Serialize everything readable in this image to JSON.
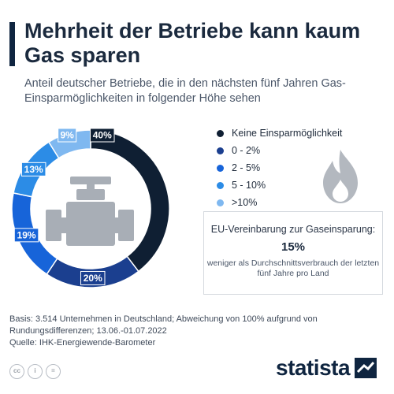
{
  "title": "Mehrheit der Betriebe kann kaum Gas sparen",
  "subtitle": "Anteil deutscher Betriebe, die in den nächsten fünf Jahren Gas-Einsparmöglichkeiten in folgender Höhe sehen",
  "chart_data": {
    "type": "pie",
    "variant": "donut",
    "title": "Mehrheit der Betriebe kann kaum Gas sparen",
    "subtitle": "Anteil deutscher Betriebe, die in den nächsten fünf Jahren Gas-Einsparmöglichkeiten in folgender Höhe sehen",
    "unit": "%",
    "legend_position": "right",
    "slices": [
      {
        "name": "Keine Einsparmöglichkeit",
        "value": 40,
        "label": "40%",
        "color": "#0f1f33"
      },
      {
        "name": "0 - 2%",
        "value": 20,
        "label": "20%",
        "color": "#1b3f8f"
      },
      {
        "name": "2 - 5%",
        "value": 19,
        "label": "19%",
        "color": "#1764d9"
      },
      {
        "name": "5 - 10%",
        "value": 13,
        "label": "13%",
        "color": "#2c8ce6"
      },
      {
        "name": ">10%",
        "value": 9,
        "label": "9%",
        "color": "#7fb8f0"
      }
    ]
  },
  "callout": {
    "heading": "EU-Vereinbarung zur Gaseinsparung:",
    "value": "15%",
    "note": "weniger als Durchschnittsverbrauch der letzten fünf Jahre pro Land"
  },
  "footer": {
    "basis": "Basis: 3.514 Unternehmen in Deutschland; Abweichung von 100% aufgrund von Rundungsdifferenzen; 13.06.-01.07.2022",
    "source": "Quelle: IHK-Energiewende-Barometer",
    "brand": "statista",
    "license_icons": [
      "cc",
      "i",
      "="
    ]
  },
  "icons": {
    "center": "factory-valve-icon",
    "side": "flame-icon"
  }
}
